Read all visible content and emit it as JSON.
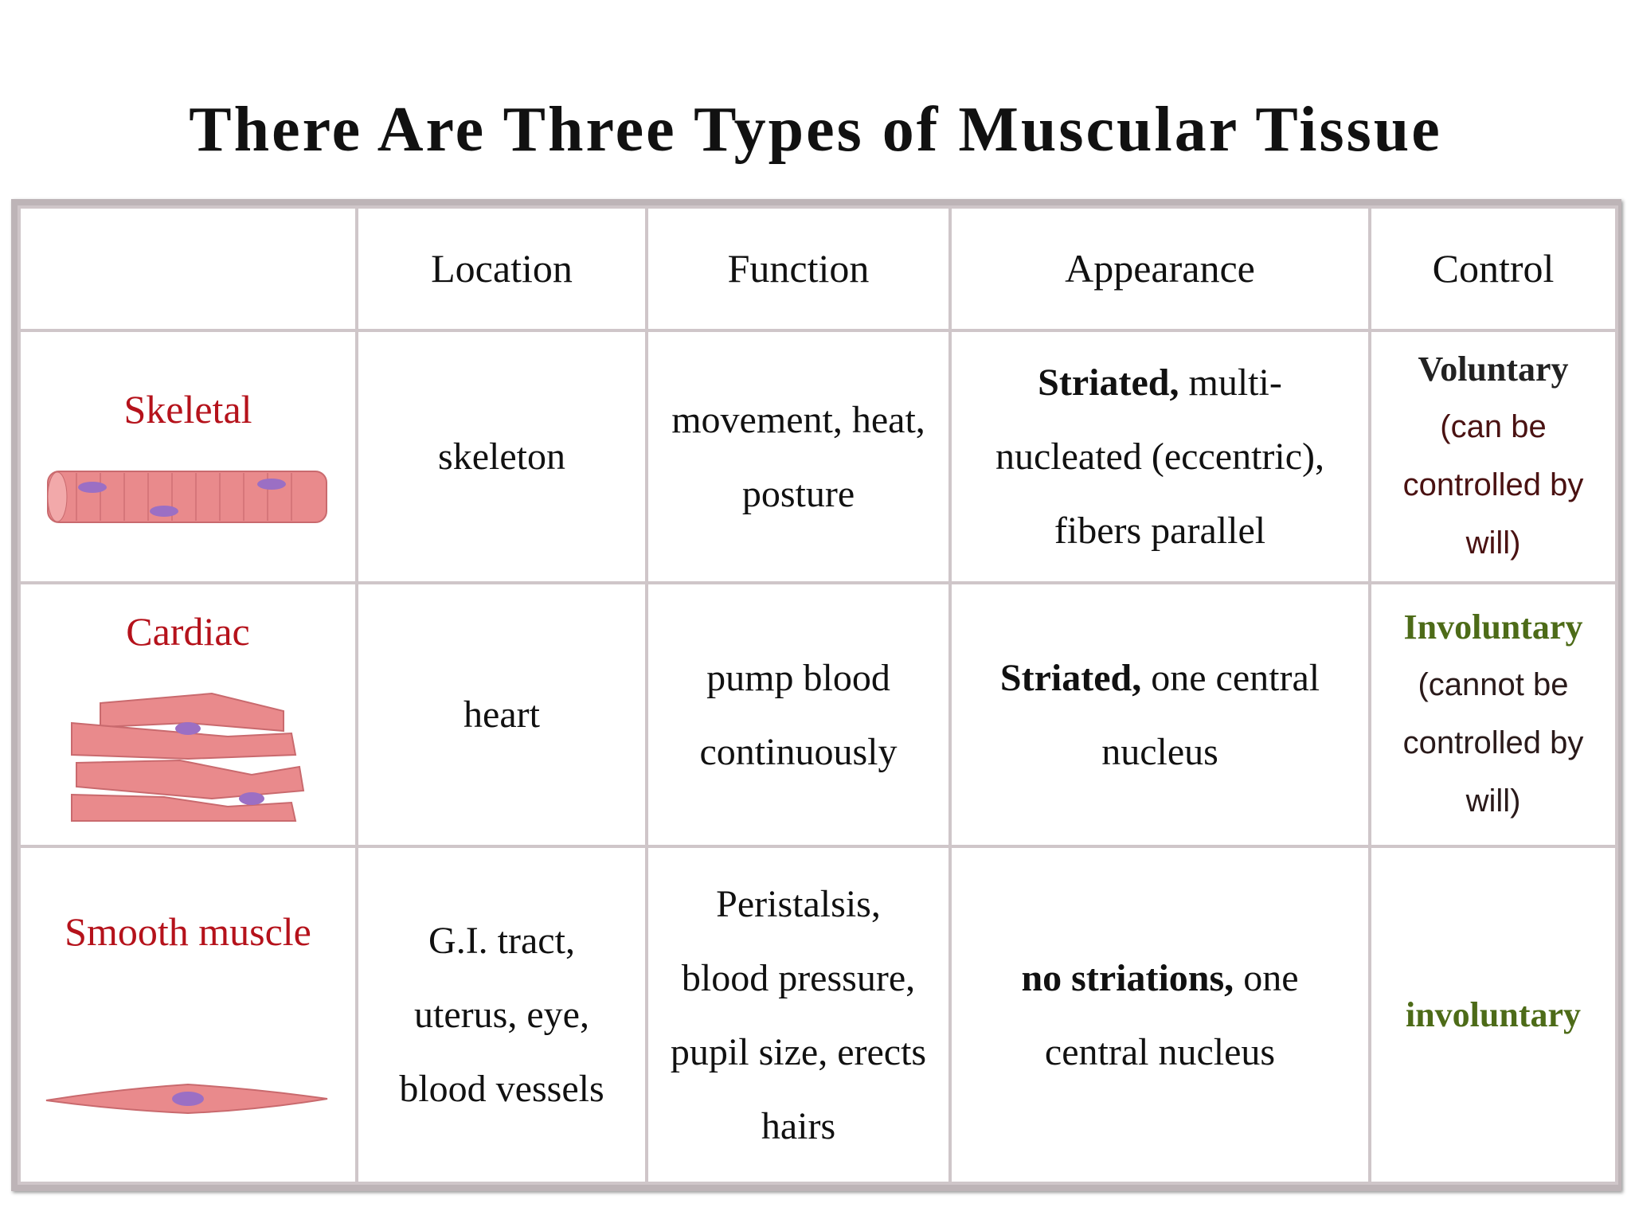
{
  "title": "There Are Three Types of Muscular Tissue",
  "table": {
    "headers": [
      "Location",
      "Function",
      "Appearance",
      "Control"
    ],
    "rows": [
      {
        "name": "Skeletal",
        "location": "skeleton",
        "function": "movement, heat, posture",
        "appearance": {
          "bold": "Striated,",
          "text": "multi-nucleated (eccentric), fibers parallel"
        },
        "control": {
          "label": "Voluntary",
          "note": "(can be controlled by will)"
        }
      },
      {
        "name": "Cardiac",
        "location": "heart",
        "function": "pump blood continuously",
        "appearance": {
          "bold": "Striated,",
          "text": "one central nucleus"
        },
        "control": {
          "label": "Involuntary",
          "note": "(cannot be controlled by will)"
        }
      },
      {
        "name": "Smooth muscle",
        "location": "G.I. tract, uterus, eye, blood vessels",
        "function": "Peristalsis, blood pressure, pupil size, erects hairs",
        "appearance": {
          "bold": "no striations,",
          "text": "one central nucleus"
        },
        "control": {
          "label": "involuntary"
        }
      }
    ]
  }
}
